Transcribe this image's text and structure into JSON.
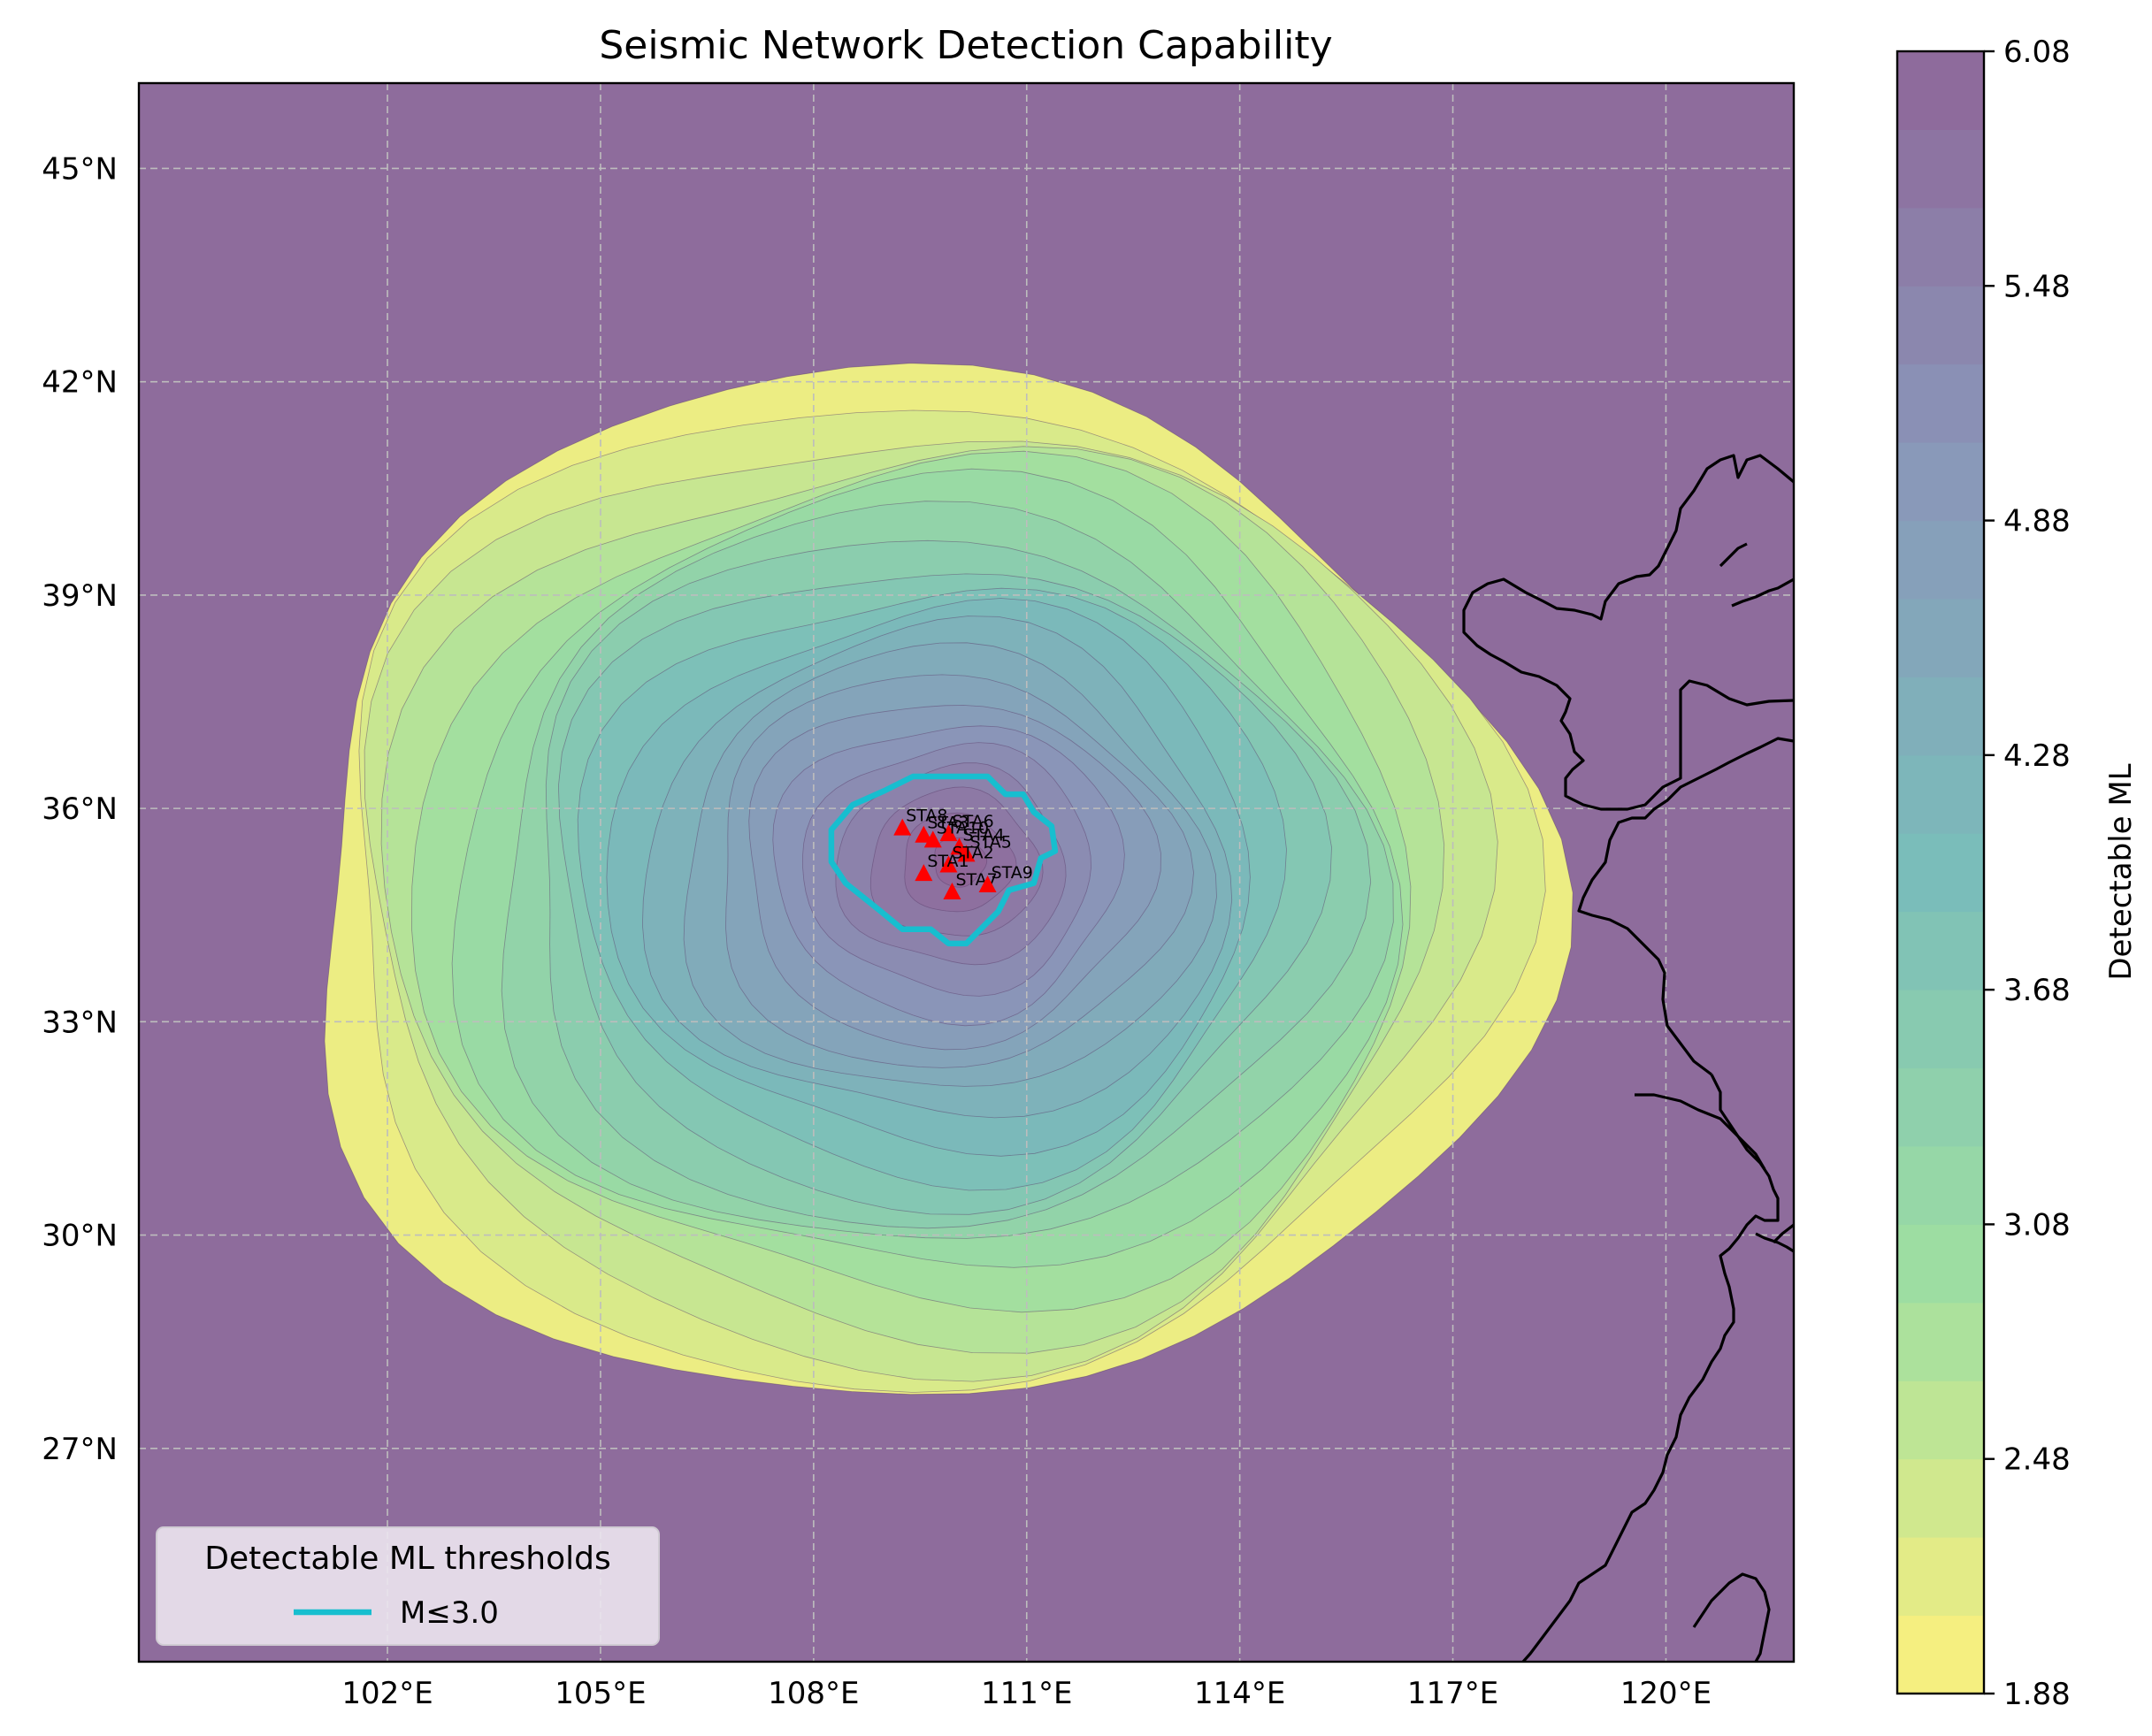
{
  "chart_data": {
    "type": "heatmap",
    "title": "Seismic Network Detection Capability",
    "colorbar_label": "Detectable ML",
    "colorbar_range": [
      1.88,
      6.08
    ],
    "colorbar_ticks": [
      "1.88",
      "2.48",
      "3.08",
      "3.68",
      "4.28",
      "4.88",
      "5.48",
      "6.08"
    ],
    "colormap": "viridis_r",
    "x_axis": {
      "range_lon": [
        98.5,
        121.8
      ],
      "ticks": [
        {
          "lon": 102,
          "label": "102°E"
        },
        {
          "lon": 105,
          "label": "105°E"
        },
        {
          "lon": 108,
          "label": "108°E"
        },
        {
          "lon": 111,
          "label": "111°E"
        },
        {
          "lon": 114,
          "label": "114°E"
        },
        {
          "lon": 117,
          "label": "117°E"
        },
        {
          "lon": 120,
          "label": "120°E"
        }
      ]
    },
    "y_axis": {
      "range_lat": [
        24.0,
        46.2
      ],
      "ticks": [
        {
          "lat": 27,
          "label": "27°N"
        },
        {
          "lat": 30,
          "label": "30°N"
        },
        {
          "lat": 33,
          "label": "33°N"
        },
        {
          "lat": 36,
          "label": "36°N"
        },
        {
          "lat": 39,
          "label": "39°N"
        },
        {
          "lat": 42,
          "label": "42°N"
        },
        {
          "lat": 45,
          "label": "45°N"
        }
      ]
    },
    "grid": true,
    "stations": [
      {
        "name": "STA8",
        "lon": 109.25,
        "lat": 35.72
      },
      {
        "name": "STA3",
        "lon": 109.55,
        "lat": 35.62
      },
      {
        "name": "STA6",
        "lon": 109.9,
        "lat": 35.64
      },
      {
        "name": "STA10",
        "lon": 109.68,
        "lat": 35.55
      },
      {
        "name": "STA4",
        "lon": 110.05,
        "lat": 35.45
      },
      {
        "name": "STA5",
        "lon": 110.15,
        "lat": 35.35
      },
      {
        "name": "STA2",
        "lon": 109.9,
        "lat": 35.2
      },
      {
        "name": "STA1",
        "lon": 109.55,
        "lat": 35.08
      },
      {
        "name": "STA7",
        "lon": 109.95,
        "lat": 34.82
      },
      {
        "name": "STA9",
        "lon": 110.45,
        "lat": 34.92
      }
    ],
    "threshold_contour": {
      "level": 3.0,
      "label": "M≤3.0",
      "color": "#17becf"
    },
    "legend": {
      "title": "Detectable ML thresholds",
      "position": "lower-left"
    },
    "station_marker_color": "#ff0000"
  }
}
